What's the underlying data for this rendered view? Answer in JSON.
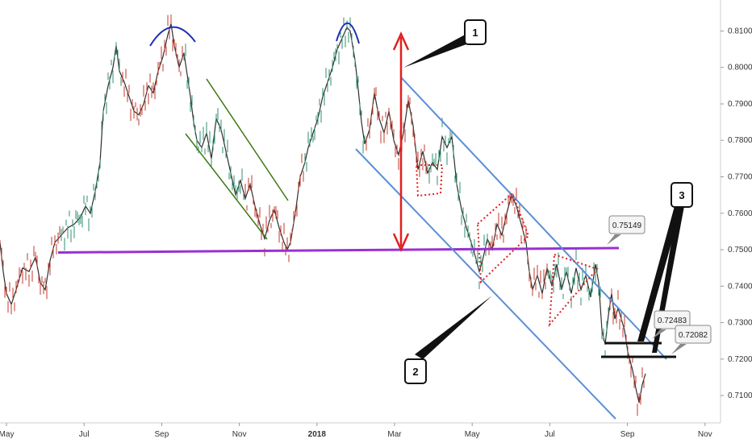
{
  "chart_data": {
    "type": "line",
    "x_ticks": [
      "May",
      "Jul",
      "Sep",
      "Nov",
      "2018",
      "Mar",
      "May",
      "Jul",
      "Sep",
      "Nov"
    ],
    "y_ticks": [
      "0.81000",
      "0.80000",
      "0.79000",
      "0.78000",
      "0.77000",
      "0.76000",
      "0.75000",
      "0.74000",
      "0.73000",
      "0.72000",
      "0.71000"
    ],
    "ylim": [
      0.7025,
      0.8185
    ],
    "series": [
      {
        "values": [
          [
            0,
            0.752
          ],
          [
            4,
            0.744
          ],
          [
            8,
            0.738
          ],
          [
            14,
            0.735
          ],
          [
            20,
            0.739
          ],
          [
            28,
            0.745
          ],
          [
            36,
            0.744
          ],
          [
            44,
            0.748
          ],
          [
            50,
            0.741
          ],
          [
            56,
            0.739
          ],
          [
            62,
            0.747
          ],
          [
            68,
            0.752
          ],
          [
            76,
            0.754
          ],
          [
            84,
            0.756
          ],
          [
            92,
            0.757
          ],
          [
            100,
            0.759
          ],
          [
            106,
            0.762
          ],
          [
            112,
            0.76
          ],
          [
            118,
            0.766
          ],
          [
            124,
            0.774
          ],
          [
            128,
            0.788
          ],
          [
            134,
            0.795
          ],
          [
            140,
            0.8
          ],
          [
            144,
            0.806
          ],
          [
            148,
            0.799
          ],
          [
            154,
            0.796
          ],
          [
            160,
            0.792
          ],
          [
            166,
            0.788
          ],
          [
            172,
            0.787
          ],
          [
            178,
            0.79
          ],
          [
            184,
            0.795
          ],
          [
            190,
            0.793
          ],
          [
            196,
            0.799
          ],
          [
            202,
            0.803
          ],
          [
            208,
            0.809
          ],
          [
            212,
            0.812
          ],
          [
            216,
            0.806
          ],
          [
            222,
            0.8
          ],
          [
            228,
            0.804
          ],
          [
            232,
            0.798
          ],
          [
            236,
            0.792
          ],
          [
            240,
            0.785
          ],
          [
            244,
            0.78
          ],
          [
            250,
            0.778
          ],
          [
            256,
            0.782
          ],
          [
            262,
            0.775
          ],
          [
            268,
            0.786
          ],
          [
            274,
            0.783
          ],
          [
            280,
            0.777
          ],
          [
            286,
            0.771
          ],
          [
            292,
            0.765
          ],
          [
            298,
            0.769
          ],
          [
            304,
            0.764
          ],
          [
            310,
            0.768
          ],
          [
            316,
            0.762
          ],
          [
            322,
            0.757
          ],
          [
            328,
            0.753
          ],
          [
            334,
            0.758
          ],
          [
            340,
            0.761
          ],
          [
            346,
            0.756
          ],
          [
            352,
            0.752
          ],
          [
            356,
            0.75
          ],
          [
            360,
            0.752
          ],
          [
            366,
            0.76
          ],
          [
            372,
            0.77
          ],
          [
            378,
            0.774
          ],
          [
            382,
            0.778
          ],
          [
            388,
            0.782
          ],
          [
            394,
            0.786
          ],
          [
            400,
            0.792
          ],
          [
            406,
            0.796
          ],
          [
            412,
            0.8
          ],
          [
            418,
            0.805
          ],
          [
            424,
            0.808
          ],
          [
            430,
            0.811
          ],
          [
            434,
            0.81
          ],
          [
            440,
            0.802
          ],
          [
            444,
            0.794
          ],
          [
            448,
            0.785
          ],
          [
            452,
            0.779
          ],
          [
            458,
            0.783
          ],
          [
            464,
            0.793
          ],
          [
            470,
            0.786
          ],
          [
            476,
            0.782
          ],
          [
            482,
            0.788
          ],
          [
            488,
            0.78
          ],
          [
            494,
            0.776
          ],
          [
            500,
            0.782
          ],
          [
            506,
            0.791
          ],
          [
            512,
            0.784
          ],
          [
            518,
            0.772
          ],
          [
            524,
            0.777
          ],
          [
            530,
            0.771
          ],
          [
            536,
            0.774
          ],
          [
            542,
            0.772
          ],
          [
            548,
            0.781
          ],
          [
            554,
            0.778
          ],
          [
            560,
            0.781
          ],
          [
            566,
            0.768
          ],
          [
            572,
            0.761
          ],
          [
            578,
            0.756
          ],
          [
            584,
            0.752
          ],
          [
            588,
            0.749
          ],
          [
            594,
            0.744
          ],
          [
            598,
            0.747
          ],
          [
            604,
            0.753
          ],
          [
            610,
            0.75
          ],
          [
            616,
            0.757
          ],
          [
            622,
            0.754
          ],
          [
            628,
            0.76
          ],
          [
            634,
            0.765
          ],
          [
            640,
            0.762
          ],
          [
            646,
            0.757
          ],
          [
            652,
            0.752
          ],
          [
            656,
            0.744
          ],
          [
            660,
            0.739
          ],
          [
            666,
            0.743
          ],
          [
            672,
            0.738
          ],
          [
            678,
            0.745
          ],
          [
            684,
            0.74
          ],
          [
            690,
            0.746
          ],
          [
            696,
            0.739
          ],
          [
            702,
            0.744
          ],
          [
            708,
            0.738
          ],
          [
            714,
            0.745
          ],
          [
            720,
            0.739
          ],
          [
            726,
            0.743
          ],
          [
            732,
            0.737
          ],
          [
            738,
            0.746
          ],
          [
            742,
            0.741
          ],
          [
            746,
            0.728
          ],
          [
            750,
            0.724
          ],
          [
            754,
            0.732
          ],
          [
            758,
            0.738
          ],
          [
            762,
            0.731
          ],
          [
            766,
            0.734
          ],
          [
            770,
            0.731
          ],
          [
            774,
            0.728
          ],
          [
            778,
            0.722
          ],
          [
            784,
            0.717
          ],
          [
            788,
            0.712
          ],
          [
            792,
            0.708
          ],
          [
            796,
            0.713
          ],
          [
            800,
            0.716
          ]
        ]
      }
    ],
    "overlays": {
      "price_labels": [
        "0.75149",
        "0.72483",
        "0.72082"
      ],
      "callouts": [
        "1",
        "2",
        "3"
      ],
      "horizontal_level": 0.7506,
      "channel_color": "#5b8fd6",
      "support_color": "#9b30d0",
      "arrow_color": "#e02020",
      "triangle_color": "#e02020",
      "small_channel_color": "#3a7a10",
      "arc_color": "#1f2fb3"
    }
  }
}
